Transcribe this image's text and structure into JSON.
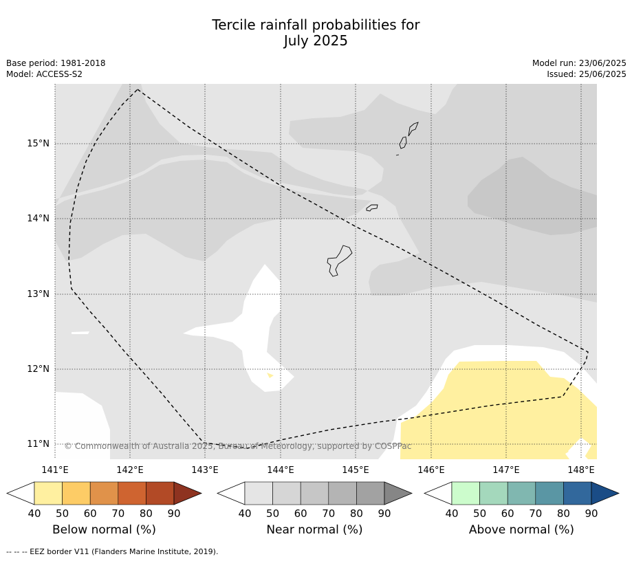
{
  "title_line1": "Tercile rainfall probabilities for",
  "title_line2": "July 2025",
  "base_period": "Base period: 1981-2018",
  "model": "Model: ACCESS-S2",
  "model_run": "Model run: 23/06/2025",
  "issued": "Issued: 25/06/2025",
  "copyright": "© Commonwealth of Australia 2025, Bureau of Meteorology, supported by COSPPac",
  "lon_labels": [
    "141°E",
    "142°E",
    "143°E",
    "144°E",
    "145°E",
    "146°E",
    "147°E",
    "148°E"
  ],
  "lat_labels": [
    "15°N",
    "14°N",
    "13°N",
    "12°N",
    "11°N"
  ],
  "colorbars": [
    {
      "label": "Below normal (%)",
      "ticks": [
        "40",
        "50",
        "60",
        "70",
        "80",
        "90"
      ],
      "colors": [
        "#ffffff",
        "#fff0a0",
        "#fdcc66",
        "#e0924a",
        "#cf6430",
        "#b24a26",
        "#8e3320"
      ]
    },
    {
      "label": "Near normal (%)",
      "ticks": [
        "40",
        "50",
        "60",
        "70",
        "80",
        "90"
      ],
      "colors": [
        "#ffffff",
        "#e5e5e5",
        "#d6d6d6",
        "#c6c6c6",
        "#b4b4b4",
        "#a2a2a2",
        "#868686"
      ]
    },
    {
      "label": "Above normal (%)",
      "ticks": [
        "40",
        "50",
        "60",
        "70",
        "80",
        "90"
      ],
      "colors": [
        "#ffffff",
        "#ccfccc",
        "#a4d8bc",
        "#80b7b0",
        "#5a96a4",
        "#32689c",
        "#1a4c86"
      ]
    }
  ],
  "footnote": "--  --  -- EEZ border V11 (Flanders Marine Institute, 2019)."
}
